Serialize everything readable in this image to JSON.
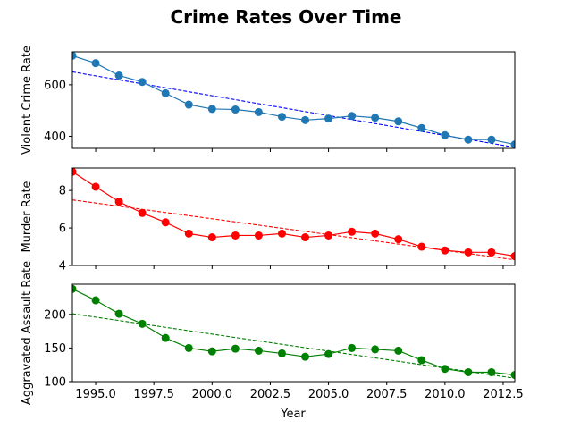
{
  "title": "Crime Rates Over Time",
  "xlabel": "Year",
  "chart_data": [
    {
      "type": "line",
      "ylabel": "Violent Crime Rate",
      "color": "#1f77b4",
      "trend_color": "#0000ff",
      "x": [
        1994,
        1995,
        1996,
        1997,
        1998,
        1999,
        2000,
        2001,
        2002,
        2003,
        2004,
        2005,
        2006,
        2007,
        2008,
        2009,
        2010,
        2011,
        2012,
        2013
      ],
      "values": [
        713,
        684,
        636,
        611,
        567,
        523,
        506,
        504,
        494,
        476,
        463,
        469,
        479,
        472,
        458,
        432,
        404,
        387,
        387,
        368
      ],
      "trendline": [
        650,
        357
      ],
      "xlim": [
        1994,
        2013
      ],
      "ylim": [
        353,
        728
      ],
      "yticks": [
        400,
        600
      ],
      "ytick_labels": [
        "400",
        "600"
      ]
    },
    {
      "type": "line",
      "ylabel": "Murder Rate",
      "color": "#ff0000",
      "trend_color": "#ff0000",
      "x": [
        1994,
        1995,
        1996,
        1997,
        1998,
        1999,
        2000,
        2001,
        2002,
        2003,
        2004,
        2005,
        2006,
        2007,
        2008,
        2009,
        2010,
        2011,
        2012,
        2013
      ],
      "values": [
        9.0,
        8.2,
        7.4,
        6.8,
        6.3,
        5.7,
        5.5,
        5.6,
        5.6,
        5.7,
        5.5,
        5.6,
        5.8,
        5.7,
        5.4,
        5.0,
        4.8,
        4.7,
        4.7,
        4.5
      ],
      "trendline": [
        7.5,
        4.3
      ],
      "xlim": [
        1994,
        2013
      ],
      "ylim": [
        4,
        9.2
      ],
      "yticks": [
        4,
        6,
        8
      ],
      "ytick_labels": [
        "4",
        "6",
        "8"
      ]
    },
    {
      "type": "line",
      "ylabel": "Aggravated Assault Rate",
      "color": "#008000",
      "trend_color": "#008000",
      "x": [
        1994,
        1995,
        1996,
        1997,
        1998,
        1999,
        2000,
        2001,
        2002,
        2003,
        2004,
        2005,
        2006,
        2007,
        2008,
        2009,
        2010,
        2011,
        2012,
        2013
      ],
      "values": [
        238,
        221,
        201,
        186,
        165,
        150,
        145,
        149,
        146,
        142,
        137,
        141,
        150,
        148,
        146,
        132,
        119,
        114,
        114,
        110
      ],
      "trendline": [
        201,
        105
      ],
      "xlim": [
        1994,
        2013
      ],
      "ylim": [
        100,
        245
      ],
      "yticks": [
        100,
        150,
        200
      ],
      "ytick_labels": [
        "100",
        "150",
        "200"
      ],
      "xticks": [
        1995,
        1997.5,
        2000,
        2002.5,
        2005,
        2007.5,
        2010,
        2012.5
      ],
      "xtick_labels": [
        "1995.0",
        "1997.5",
        "2000.0",
        "2002.5",
        "2005.0",
        "2007.5",
        "2010.0",
        "2012.5"
      ]
    }
  ]
}
